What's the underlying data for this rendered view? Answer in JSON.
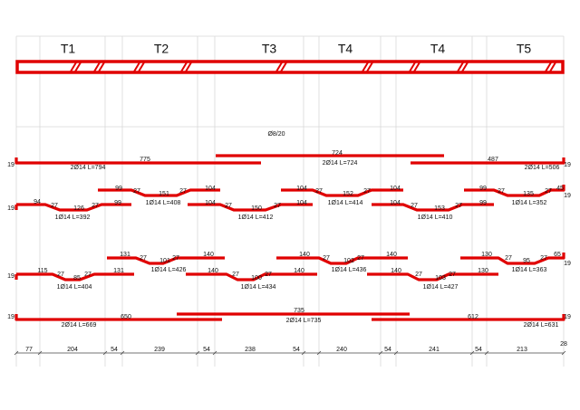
{
  "header": {
    "spans": [
      "T1",
      "T2",
      "T3",
      "T4",
      "T4",
      "T5"
    ]
  },
  "stirrups": "Ø8/20",
  "rows": [
    [
      "19",
      "775",
      "2Ø14 L=794",
      "724",
      "2Ø14 L=724",
      "487",
      "2Ø14 L=506",
      "19"
    ],
    [
      "19",
      "94",
      "27",
      "126",
      "27",
      "99",
      "1Ø14 L=392",
      "99",
      "27",
      "151",
      "27",
      "104",
      "1Ø14 L=408",
      "104",
      "27",
      "150",
      "27",
      "104",
      "1Ø14 L=412",
      "104",
      "27",
      "152",
      "27",
      "104",
      "1Ø14 L=414",
      "104",
      "27",
      "153",
      "27",
      "99",
      "1Ø14 L=410",
      "99",
      "27",
      "135",
      "27",
      "45",
      "19",
      "1Ø14 L=352"
    ],
    [
      "19",
      "115",
      "27",
      "85",
      "27",
      "131",
      "1Ø14 L=404",
      "131",
      "27",
      "101",
      "27",
      "140",
      "1Ø14 L=426",
      "140",
      "27",
      "100",
      "27",
      "140",
      "1Ø14 L=434",
      "140",
      "27",
      "102",
      "27",
      "140",
      "1Ø14 L=436",
      "140",
      "27",
      "103",
      "27",
      "130",
      "1Ø14 L=427",
      "130",
      "27",
      "95",
      "27",
      "65",
      "19",
      "1Ø14 L=363"
    ],
    [
      "19",
      "650",
      "2Ø14 L=669",
      "735",
      "2Ø14 L=735",
      "612",
      "2Ø14 L=631",
      "19"
    ]
  ],
  "dimensions": [
    "77",
    "204",
    "54",
    "239",
    "54",
    "238",
    "54",
    "240",
    "54",
    "241",
    "54",
    "213",
    "28"
  ]
}
